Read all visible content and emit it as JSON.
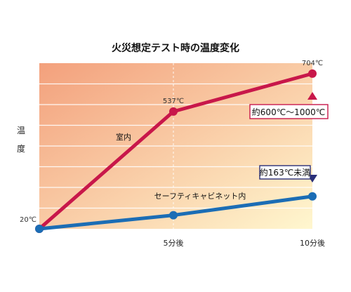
{
  "chart_data": {
    "type": "line",
    "title": "火災想定テスト時の温度変化",
    "ylabel": "温度",
    "xlabel": "",
    "x": [
      "",
      "5分後",
      "10分後"
    ],
    "ylim": [
      20,
      750
    ],
    "grid": true,
    "series": [
      {
        "name": "室内",
        "values": [
          20,
          537,
          704
        ],
        "color": "#c8174a",
        "point_labels": [
          "20℃",
          "537℃",
          "704℃"
        ]
      },
      {
        "name": "セーフティキャビネット内",
        "values": [
          20,
          80,
          163
        ],
        "color": "#1b6db5",
        "point_labels": [
          "",
          "",
          ""
        ]
      }
    ],
    "annotations": {
      "upper_range": "約600℃〜1000℃",
      "lower_range": "約163℃未満"
    },
    "background_gradient": [
      "#f3a07c",
      "#fff7cf"
    ]
  }
}
